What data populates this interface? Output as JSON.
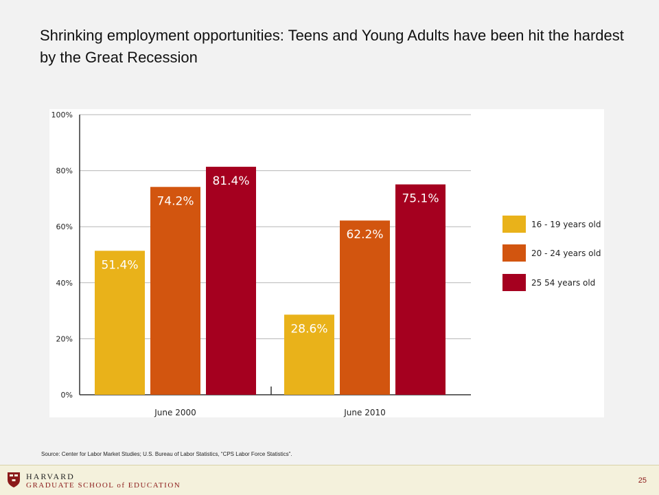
{
  "slide": {
    "title": "Shrinking employment opportunities: Teens and Young Adults have been hit the hardest by the Great Recession",
    "source": "Source: Center for Labor Market Studies; U.S. Bureau of Labor Statistics, “CPS Labor Force Statistics”.",
    "org_line1": "HARVARD",
    "org_line2": "GRADUATE SCHOOL of EDUCATION",
    "page_number": "25"
  },
  "chart_data": {
    "type": "bar",
    "categories": [
      "June 2000",
      "June 2010"
    ],
    "series": [
      {
        "name": "16 - 19 years old",
        "values": [
          51.4,
          28.6
        ],
        "labels": [
          "51.4%",
          "28.6%"
        ],
        "color": "#e9b21a"
      },
      {
        "name": "20 - 24 years old",
        "values": [
          74.2,
          62.2
        ],
        "labels": [
          "74.2%",
          "62.2%"
        ],
        "color": "#d2550f"
      },
      {
        "name": "25 54 years old",
        "values": [
          81.4,
          75.1
        ],
        "labels": [
          "81.4%",
          "75.1%"
        ],
        "color": "#a5001f"
      }
    ],
    "yticks": [
      "0%",
      "20%",
      "40%",
      "60%",
      "80%",
      "100%"
    ],
    "ylim": [
      0,
      100
    ],
    "grid": true,
    "legend": "right",
    "title": "",
    "xlabel": "",
    "ylabel": ""
  }
}
